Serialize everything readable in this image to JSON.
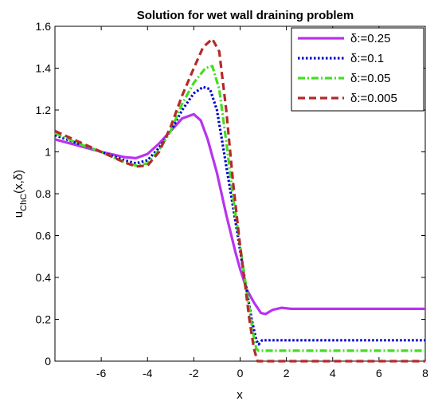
{
  "chart_data": {
    "type": "line",
    "title": "Solution for wet wall draining problem",
    "xlabel": "x",
    "ylabel_main": "u",
    "ylabel_sub": "ChC",
    "ylabel_tail": "(x,δ)",
    "xlim": [
      -8,
      8
    ],
    "ylim": [
      0,
      1.6
    ],
    "xticks": [
      -6,
      -4,
      -2,
      0,
      2,
      4,
      6,
      8
    ],
    "yticks": [
      0,
      0.2,
      0.4,
      0.6,
      0.8,
      1,
      1.2,
      1.4,
      1.6
    ],
    "xtick_labels": [
      "-6",
      "-4",
      "-2",
      "0",
      "2",
      "4",
      "6",
      "8"
    ],
    "ytick_labels": [
      "0",
      "0.2",
      "0.4",
      "0.6",
      "0.8",
      "1",
      "1.2",
      "1.4",
      "1.6"
    ],
    "legend_position": "top-right",
    "series": [
      {
        "name": "δ:=0.25",
        "color": "#b833ef",
        "dash": "solid",
        "x": [
          -8,
          -7,
          -6,
          -5,
          -4.5,
          -4,
          -3.5,
          -3,
          -2.5,
          -2,
          -1.7,
          -1.4,
          -1,
          -0.6,
          -0.2,
          0,
          0.3,
          0.6,
          0.9,
          1.1,
          1.4,
          1.8,
          2.2,
          3,
          4,
          6,
          8
        ],
        "y": [
          1.06,
          1.03,
          1.0,
          0.975,
          0.97,
          0.99,
          1.04,
          1.1,
          1.16,
          1.18,
          1.15,
          1.06,
          0.9,
          0.7,
          0.52,
          0.44,
          0.34,
          0.28,
          0.23,
          0.225,
          0.245,
          0.255,
          0.25,
          0.25,
          0.25,
          0.25,
          0.25
        ]
      },
      {
        "name": "δ:=0.1",
        "color": "#0000cc",
        "dash": "dotted",
        "x": [
          -8,
          -7,
          -6,
          -5,
          -4.5,
          -4,
          -3.5,
          -3,
          -2.5,
          -2,
          -1.6,
          -1.3,
          -1,
          -0.7,
          -0.4,
          -0.1,
          0.1,
          0.3,
          0.5,
          0.7,
          0.8,
          0.95,
          1.2,
          1.6,
          2.5,
          4,
          6,
          8
        ],
        "y": [
          1.08,
          1.04,
          1.0,
          0.96,
          0.945,
          0.96,
          1.02,
          1.1,
          1.2,
          1.28,
          1.31,
          1.3,
          1.2,
          1.0,
          0.8,
          0.6,
          0.46,
          0.33,
          0.2,
          0.1,
          0.08,
          0.1,
          0.1,
          0.1,
          0.1,
          0.1,
          0.1,
          0.1
        ]
      },
      {
        "name": "δ:=0.05",
        "color": "#44dd22",
        "dash": "dashdot",
        "x": [
          -8,
          -7,
          -6,
          -5,
          -4.5,
          -4,
          -3.5,
          -3,
          -2.5,
          -2,
          -1.5,
          -1.2,
          -0.9,
          -0.6,
          -0.3,
          0,
          0.2,
          0.4,
          0.55,
          0.7,
          0.8,
          1.0,
          1.5,
          3,
          5,
          8
        ],
        "y": [
          1.09,
          1.04,
          1.0,
          0.95,
          0.935,
          0.945,
          1.01,
          1.1,
          1.23,
          1.33,
          1.4,
          1.41,
          1.3,
          1.05,
          0.78,
          0.55,
          0.4,
          0.25,
          0.14,
          0.06,
          0.05,
          0.05,
          0.05,
          0.05,
          0.05,
          0.05
        ]
      },
      {
        "name": "δ:=0.005",
        "color": "#b52a2a",
        "dash": "dashed",
        "x": [
          -8,
          -7,
          -6,
          -5,
          -4.5,
          -4,
          -3.5,
          -3,
          -2.5,
          -2,
          -1.6,
          -1.2,
          -0.9,
          -0.6,
          -0.3,
          0,
          0.2,
          0.4,
          0.6,
          0.75,
          0.85,
          1.2,
          2,
          4,
          6,
          8
        ],
        "y": [
          1.1,
          1.05,
          1.0,
          0.95,
          0.93,
          0.935,
          1.0,
          1.12,
          1.27,
          1.4,
          1.5,
          1.54,
          1.48,
          1.2,
          0.85,
          0.55,
          0.38,
          0.2,
          0.06,
          0.0,
          0.0,
          0.0,
          0.0,
          0.0,
          0.0,
          0.0
        ]
      }
    ]
  }
}
